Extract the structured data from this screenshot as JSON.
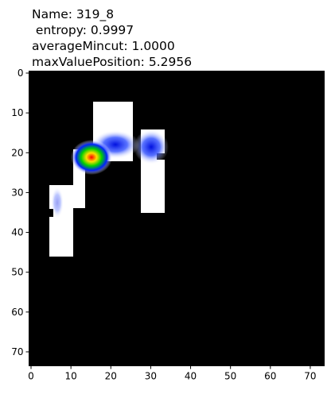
{
  "chart_data": {
    "type": "heatmap",
    "title": [
      "Name: 319_8",
      " entropy: 0.9997",
      "averageMincut: 1.0000",
      "maxValuePosition: 5.2956"
    ],
    "xlim": [
      -0.5,
      73.5
    ],
    "ylim": [
      73.5,
      -0.5
    ],
    "xticks": [
      0,
      10,
      20,
      30,
      40,
      50,
      60,
      70
    ],
    "yticks": [
      0,
      10,
      20,
      30,
      40,
      50,
      60,
      70
    ]
  }
}
